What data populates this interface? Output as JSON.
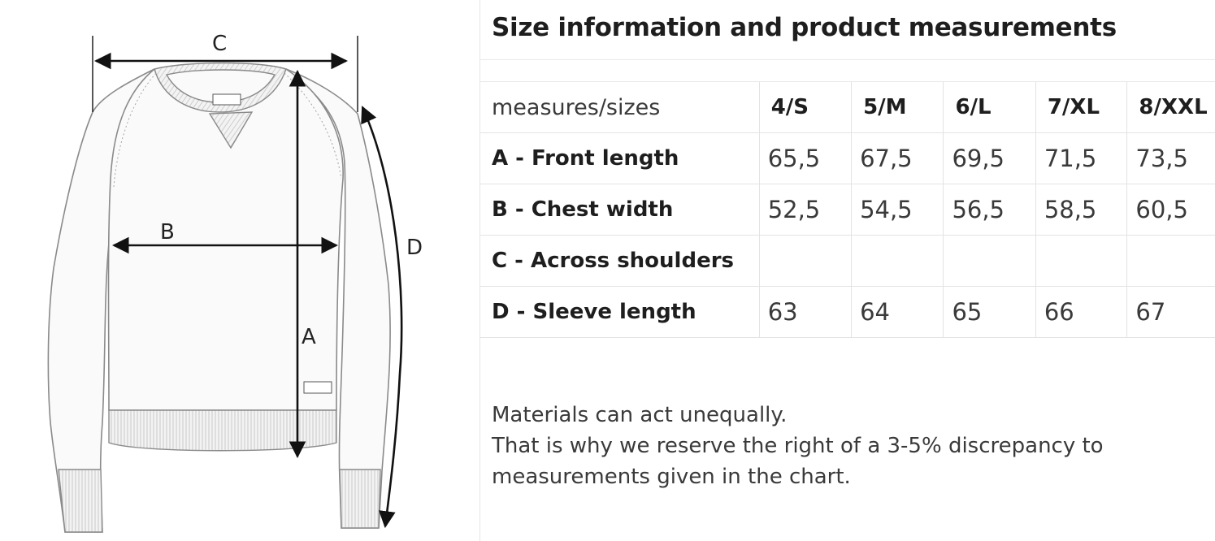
{
  "diagram": {
    "labels": {
      "a": "A",
      "b": "B",
      "c": "C",
      "d": "D"
    }
  },
  "title": "Size information and product measurements",
  "table": {
    "corner_label": "measures/sizes",
    "sizes": [
      "4/S",
      "5/M",
      "6/L",
      "7/XL",
      "8/XXL"
    ],
    "rows": [
      {
        "label": "A - Front length",
        "values": [
          "65,5",
          "67,5",
          "69,5",
          "71,5",
          "73,5"
        ]
      },
      {
        "label": "B - Chest width",
        "values": [
          "52,5",
          "54,5",
          "56,5",
          "58,5",
          "60,5"
        ]
      },
      {
        "label": "C - Across shoulders",
        "values": [
          "",
          "",
          "",
          "",
          ""
        ]
      },
      {
        "label": "D - Sleeve length",
        "values": [
          "63",
          "64",
          "65",
          "66",
          "67"
        ]
      }
    ]
  },
  "note": {
    "lines": [
      "Materials can act unequally.",
      "That is why we reserve the right of a 3-5% discrepancy to",
      "measurements given in the chart."
    ]
  }
}
